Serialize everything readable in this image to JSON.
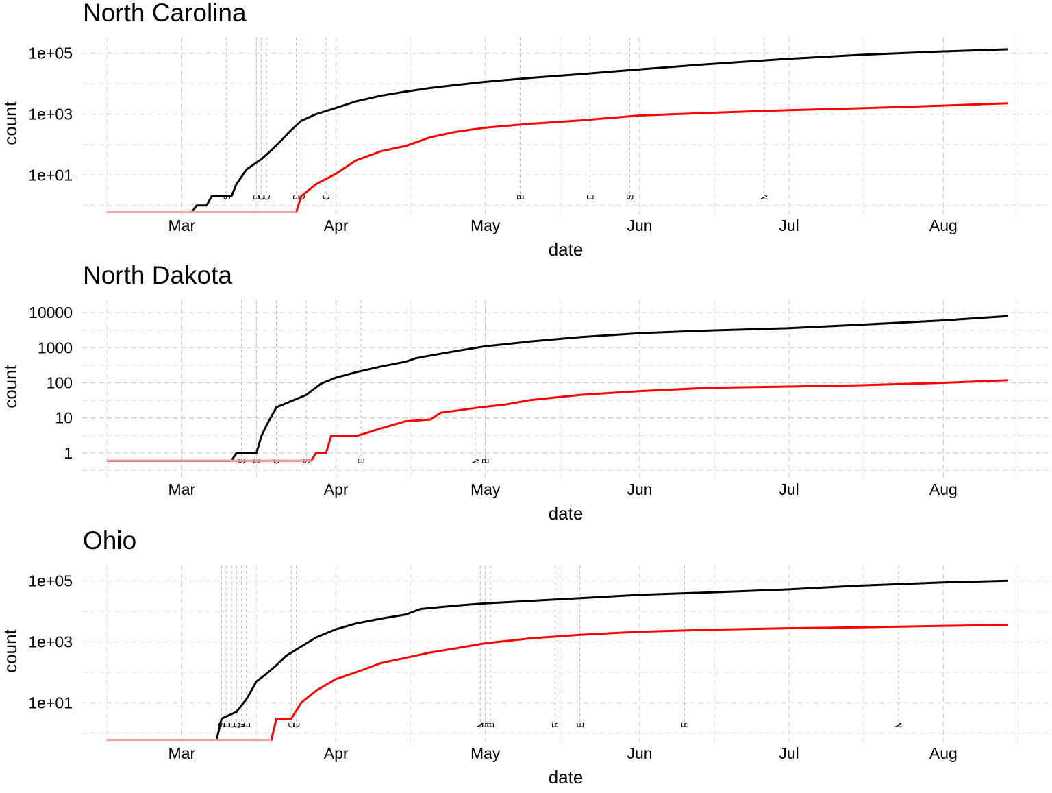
{
  "chart_data": [
    {
      "type": "line",
      "title": "North Carolina",
      "xlabel": "date",
      "ylabel": "count",
      "y_scale": "log",
      "x_ticks": [
        "Mar",
        "Apr",
        "May",
        "Jun",
        "Jul",
        "Aug"
      ],
      "y_ticks": [
        "1e+01",
        "1e+03",
        "1e+05"
      ],
      "grid": true,
      "legend": "none",
      "series": [
        {
          "color": "#000000",
          "points": [
            [
              "2020-02-15",
              0.6
            ],
            [
              "2020-03-03",
              0.6
            ],
            [
              "2020-03-04",
              1
            ],
            [
              "2020-03-06",
              1
            ],
            [
              "2020-03-07",
              2
            ],
            [
              "2020-03-11",
              2
            ],
            [
              "2020-03-12",
              5
            ],
            [
              "2020-03-14",
              15
            ],
            [
              "2020-03-17",
              33
            ],
            [
              "2020-03-19",
              65
            ],
            [
              "2020-03-21",
              137
            ],
            [
              "2020-03-23",
              300
            ],
            [
              "2020-03-25",
              600
            ],
            [
              "2020-03-28",
              1000
            ],
            [
              "2020-04-01",
              1600
            ],
            [
              "2020-04-05",
              2600
            ],
            [
              "2020-04-10",
              4000
            ],
            [
              "2020-04-15",
              5500
            ],
            [
              "2020-04-20",
              7200
            ],
            [
              "2020-04-25",
              9000
            ],
            [
              "2020-05-01",
              11500
            ],
            [
              "2020-05-10",
              15500
            ],
            [
              "2020-05-20",
              20500
            ],
            [
              "2020-06-01",
              29500
            ],
            [
              "2020-06-15",
              44000
            ],
            [
              "2020-07-01",
              66000
            ],
            [
              "2020-07-15",
              88000
            ],
            [
              "2020-08-01",
              115000
            ],
            [
              "2020-08-14",
              135000
            ]
          ]
        },
        {
          "color": "#ff0000",
          "points": [
            [
              "2020-02-15",
              0.6
            ],
            [
              "2020-03-24",
              0.6
            ],
            [
              "2020-03-25",
              2
            ],
            [
              "2020-03-28",
              5
            ],
            [
              "2020-04-01",
              11
            ],
            [
              "2020-04-05",
              30
            ],
            [
              "2020-04-10",
              60
            ],
            [
              "2020-04-15",
              90
            ],
            [
              "2020-04-20",
              175
            ],
            [
              "2020-04-25",
              260
            ],
            [
              "2020-05-01",
              360
            ],
            [
              "2020-05-10",
              480
            ],
            [
              "2020-05-20",
              620
            ],
            [
              "2020-06-01",
              900
            ],
            [
              "2020-06-15",
              1100
            ],
            [
              "2020-07-01",
              1350
            ],
            [
              "2020-07-15",
              1550
            ],
            [
              "2020-08-01",
              1900
            ],
            [
              "2020-08-14",
              2250
            ]
          ]
        }
      ],
      "annotations": [
        {
          "date": "2020-03-10",
          "label": "State of emergency"
        },
        {
          "date": "2020-03-16",
          "label": "Date closed K 12 schools"
        },
        {
          "date": "2020-03-17",
          "label": "Closed restaurants except take out, Waived ..."
        },
        {
          "date": "2020-03-18",
          "label": "Order freezing utility shut offs"
        },
        {
          "date": "2020-03-24",
          "label": "Date banned visitors to nursing homes"
        },
        {
          "date": "2020-03-25",
          "label": "Closed gyms, Closed movie theaters"
        },
        {
          "date": "2020-03-30",
          "label": "Closed non essential businesses, Stay at home"
        },
        {
          "date": "2020-05-08",
          "label": "Began to reopen businesses statewide"
        },
        {
          "date": "2020-05-22",
          "label": "End relax stay at home shelter in place"
        },
        {
          "date": "2020-05-30",
          "label": "Stop Initiation of Evictions overall or due to COVID"
        },
        {
          "date": "2020-06-26",
          "label": "Mandate face mask use by all individuals"
        }
      ]
    },
    {
      "type": "line",
      "title": "North Dakota",
      "xlabel": "date",
      "ylabel": "count",
      "y_scale": "log",
      "x_ticks": [
        "Mar",
        "Apr",
        "May",
        "Jun",
        "Jul",
        "Aug"
      ],
      "y_ticks": [
        "1",
        "10",
        "100",
        "1000",
        "10000"
      ],
      "grid": true,
      "legend": "none",
      "series": [
        {
          "color": "#000000",
          "points": [
            [
              "2020-02-15",
              0.6
            ],
            [
              "2020-03-11",
              0.6
            ],
            [
              "2020-03-12",
              1
            ],
            [
              "2020-03-16",
              1
            ],
            [
              "2020-03-17",
              3
            ],
            [
              "2020-03-18",
              6
            ],
            [
              "2020-03-20",
              20
            ],
            [
              "2020-03-23",
              30
            ],
            [
              "2020-03-26",
              45
            ],
            [
              "2020-03-29",
              95
            ],
            [
              "2020-04-01",
              140
            ],
            [
              "2020-04-05",
              200
            ],
            [
              "2020-04-10",
              290
            ],
            [
              "2020-04-15",
              400
            ],
            [
              "2020-04-17",
              500
            ],
            [
              "2020-04-20",
              600
            ],
            [
              "2020-04-25",
              800
            ],
            [
              "2020-05-01",
              1100
            ],
            [
              "2020-05-10",
              1500
            ],
            [
              "2020-05-20",
              2000
            ],
            [
              "2020-06-01",
              2600
            ],
            [
              "2020-06-15",
              3100
            ],
            [
              "2020-07-01",
              3600
            ],
            [
              "2020-07-15",
              4500
            ],
            [
              "2020-08-01",
              6000
            ],
            [
              "2020-08-14",
              8000
            ]
          ]
        },
        {
          "color": "#ff0000",
          "points": [
            [
              "2020-02-15",
              0.6
            ],
            [
              "2020-03-27",
              0.6
            ],
            [
              "2020-03-28",
              1
            ],
            [
              "2020-03-30",
              1
            ],
            [
              "2020-03-31",
              3
            ],
            [
              "2020-04-05",
              3
            ],
            [
              "2020-04-10",
              5
            ],
            [
              "2020-04-15",
              8
            ],
            [
              "2020-04-20",
              9
            ],
            [
              "2020-04-22",
              14
            ],
            [
              "2020-04-30",
              20
            ],
            [
              "2020-05-05",
              24
            ],
            [
              "2020-05-10",
              32
            ],
            [
              "2020-05-20",
              45
            ],
            [
              "2020-06-01",
              58
            ],
            [
              "2020-06-15",
              72
            ],
            [
              "2020-07-01",
              78
            ],
            [
              "2020-07-15",
              85
            ],
            [
              "2020-08-01",
              100
            ],
            [
              "2020-08-14",
              118
            ]
          ]
        }
      ],
      "annotations": [
        {
          "date": "2020-03-13",
          "label": "State of emergency"
        },
        {
          "date": "2020-03-16",
          "label": "Date closed K 12 schools"
        },
        {
          "date": "2020-03-20",
          "label": "Closed restaurants except take out, Closed gyms"
        },
        {
          "date": "2020-03-26",
          "label": "Stop Initiation of Evictions overall or due to COVID"
        },
        {
          "date": "2020-04-06",
          "label": "Date banned visitors to nursing homes"
        },
        {
          "date": "2020-04-29",
          "label": "Mandate face mask use by employees"
        },
        {
          "date": "2020-05-01",
          "label": "Began to reopen businesses statewide"
        }
      ]
    },
    {
      "type": "line",
      "title": "Ohio",
      "xlabel": "date",
      "ylabel": "count",
      "y_scale": "log",
      "x_ticks": [
        "Mar",
        "Apr",
        "May",
        "Jun",
        "Jul",
        "Aug"
      ],
      "y_ticks": [
        "1e+01",
        "1e+03",
        "1e+05"
      ],
      "grid": true,
      "legend": "none",
      "series": [
        {
          "color": "#000000",
          "points": [
            [
              "2020-02-15",
              0.6
            ],
            [
              "2020-03-08",
              0.6
            ],
            [
              "2020-03-09",
              3
            ],
            [
              "2020-03-12",
              5
            ],
            [
              "2020-03-14",
              13
            ],
            [
              "2020-03-16",
              50
            ],
            [
              "2020-03-18",
              88
            ],
            [
              "2020-03-20",
              170
            ],
            [
              "2020-03-22",
              350
            ],
            [
              "2020-03-25",
              700
            ],
            [
              "2020-03-28",
              1400
            ],
            [
              "2020-04-01",
              2600
            ],
            [
              "2020-04-05",
              4000
            ],
            [
              "2020-04-10",
              5800
            ],
            [
              "2020-04-15",
              7900
            ],
            [
              "2020-04-18",
              12000
            ],
            [
              "2020-04-25",
              15500
            ],
            [
              "2020-05-01",
              18500
            ],
            [
              "2020-05-15",
              24500
            ],
            [
              "2020-06-01",
              35000
            ],
            [
              "2020-06-15",
              42000
            ],
            [
              "2020-07-01",
              53000
            ],
            [
              "2020-07-15",
              70000
            ],
            [
              "2020-08-01",
              90000
            ],
            [
              "2020-08-14",
              102000
            ]
          ]
        },
        {
          "color": "#ff0000",
          "points": [
            [
              "2020-02-15",
              0.6
            ],
            [
              "2020-03-19",
              0.6
            ],
            [
              "2020-03-20",
              3
            ],
            [
              "2020-03-23",
              3
            ],
            [
              "2020-03-25",
              10
            ],
            [
              "2020-03-28",
              25
            ],
            [
              "2020-04-01",
              60
            ],
            [
              "2020-04-05",
              100
            ],
            [
              "2020-04-10",
              200
            ],
            [
              "2020-04-15",
              300
            ],
            [
              "2020-04-20",
              450
            ],
            [
              "2020-04-25",
              610
            ],
            [
              "2020-05-01",
              900
            ],
            [
              "2020-05-10",
              1300
            ],
            [
              "2020-05-20",
              1700
            ],
            [
              "2020-06-01",
              2150
            ],
            [
              "2020-06-15",
              2500
            ],
            [
              "2020-07-01",
              2800
            ],
            [
              "2020-07-15",
              3000
            ],
            [
              "2020-08-01",
              3350
            ],
            [
              "2020-08-14",
              3600
            ]
          ]
        }
      ],
      "annotations": [
        {
          "date": "2020-03-09",
          "label": "State of emergency"
        },
        {
          "date": "2020-03-10",
          "label": "Date banned visitors to nursing homes"
        },
        {
          "date": "2020-03-11",
          "label": "Order freezing utility shut offs"
        },
        {
          "date": "2020-03-12",
          "label": "Closed restaurants except take out"
        },
        {
          "date": "2020-03-13",
          "label": "Waived one week waiting period for UI"
        },
        {
          "date": "2020-03-14",
          "label": "Date closed K 12 schools, Closed gyms"
        },
        {
          "date": "2020-03-23",
          "label": "Closed non essential businesses, Stay at home"
        },
        {
          "date": "2020-03-24",
          "label": "Closed day cares"
        },
        {
          "date": "2020-04-30",
          "label": "Mandate face mask use by employees"
        },
        {
          "date": "2020-05-01",
          "label": "Resumed elective medical procedures"
        },
        {
          "date": "2020-05-02",
          "label": "Began to reopen businesses statewide"
        },
        {
          "date": "2020-05-15",
          "label": "Reopen restaurants"
        },
        {
          "date": "2020-05-20",
          "label": "End relax stay at home shelter in place"
        },
        {
          "date": "2020-06-10",
          "label": "Reopened movie theaters"
        },
        {
          "date": "2020-07-23",
          "label": "Mandate face mask use by all individuals"
        }
      ]
    }
  ]
}
